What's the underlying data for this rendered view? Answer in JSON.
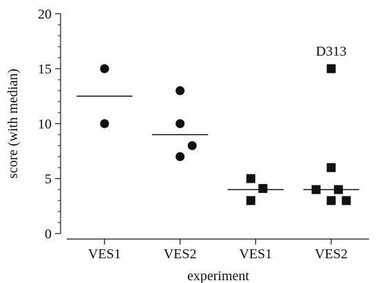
{
  "chart_data": {
    "type": "scatter",
    "title": "",
    "xlabel": "experiment",
    "ylabel": "score (with median)",
    "ylim": [
      0,
      20
    ],
    "yticks": [
      0,
      5,
      10,
      15,
      20
    ],
    "y_minor_step": 1,
    "grid": false,
    "legend": "none",
    "categories": [
      "VES1",
      "VES2",
      "VES1",
      "VES2"
    ],
    "marker_color": "#111111",
    "groups": [
      {
        "category": "VES1",
        "marker": "circle",
        "points": [
          {
            "offset": 0.0,
            "y": 15
          },
          {
            "offset": 0.0,
            "y": 10
          }
        ],
        "median": 12.5
      },
      {
        "category": "VES2",
        "marker": "circle",
        "points": [
          {
            "offset": 0.0,
            "y": 13
          },
          {
            "offset": 0.0,
            "y": 10
          },
          {
            "offset": 0.2,
            "y": 8
          },
          {
            "offset": 0.0,
            "y": 7
          }
        ],
        "median": 9
      },
      {
        "category": "VES1",
        "marker": "square",
        "points": [
          {
            "offset": -0.08,
            "y": 5
          },
          {
            "offset": 0.12,
            "y": 4.1
          },
          {
            "offset": -0.08,
            "y": 3
          }
        ],
        "median": 4
      },
      {
        "category": "VES2",
        "marker": "square",
        "points": [
          {
            "offset": 0.0,
            "y": 15
          },
          {
            "offset": 0.0,
            "y": 6
          },
          {
            "offset": -0.25,
            "y": 4
          },
          {
            "offset": 0.12,
            "y": 4
          },
          {
            "offset": 0.0,
            "y": 3
          },
          {
            "offset": 0.25,
            "y": 3
          }
        ],
        "median": 4
      }
    ],
    "annotations": [
      {
        "text": "D313",
        "group": 3,
        "y": 15
      }
    ]
  }
}
